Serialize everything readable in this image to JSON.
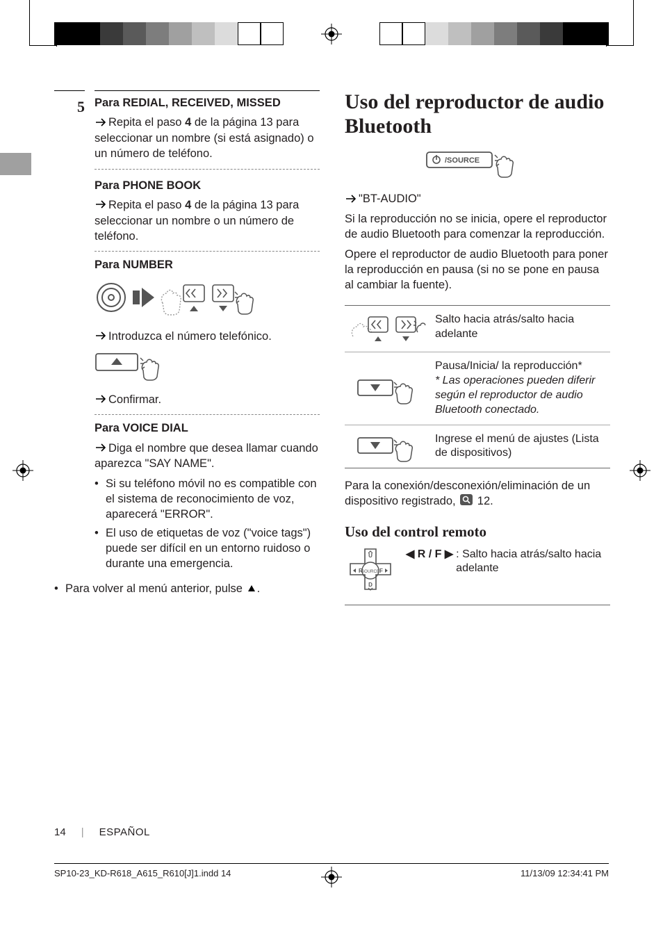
{
  "crop_swatches": [
    "#000000",
    "#000000",
    "#3a3a3a",
    "#5a5a5a",
    "#7d7d7d",
    "#a0a0a0",
    "#bfbfbf",
    "#dcdcdc",
    "#ffffff",
    "#ffffff"
  ],
  "left": {
    "step_number": "5",
    "redial": {
      "heading": "Para REDIAL, RECEIVED, MISSED",
      "body_pre": "Repita el paso ",
      "body_bold": "4",
      "body_post": " de la página 13 para seleccionar un nombre (si está asignado) o un número de teléfono."
    },
    "phonebook": {
      "heading": "Para PHONE BOOK",
      "body_pre": "Repita el paso ",
      "body_bold": "4",
      "body_post": " de la página 13 para seleccionar un nombre o un número de teléfono."
    },
    "number": {
      "heading": "Para NUMBER",
      "enter": "Introduzca el número telefónico.",
      "confirm": "Confirmar."
    },
    "voicedial": {
      "heading": "Para VOICE DIAL",
      "body": "Diga el nombre que desea llamar cuando aparezca \"SAY NAME\".",
      "bullets": [
        "Si su teléfono móvil no es compatible con el sistema de reconocimiento de voz, aparecerá \"ERROR\".",
        "El uso de etiquetas de voz (\"voice tags\") puede ser difícil en un entorno ruidoso o durante una emergencia."
      ]
    },
    "back_note_pre": "Para volver al menú anterior, pulse ",
    "back_note_post": "."
  },
  "right": {
    "title": "Uso del reproductor de audio Bluetooth",
    "source_label": "⏻/SOURCE",
    "bt_audio_quote": "\"BT-AUDIO\"",
    "para1": "Si la reproducción no se inicia, opere el reproductor de audio Bluetooth para comenzar la reproducción.",
    "para2": "Opere el reproductor de audio Bluetooth para poner la reproducción en pausa (si no se pone en pausa al cambiar la fuente).",
    "ops": [
      {
        "text": "Salto hacia atrás/salto hacia adelante",
        "icon": "skip"
      },
      {
        "text": "Pausa/Inicia/ la reproducción*",
        "note": "* Las operaciones pueden diferir según el reproductor de audio Bluetooth conectado.",
        "icon": "play"
      },
      {
        "text": "Ingrese el menú de ajustes (Lista de dispositivos)",
        "icon": "menu"
      }
    ],
    "connection_note_pre": "Para la conexión/desconexión/eliminación de un dispositivo registrado, ",
    "connection_note_ref": "12.",
    "remote_title": "Uso del control remoto",
    "remote_key": "◀ R / F ▶",
    "remote_text": ": Salto hacia atrás/salto hacia adelante"
  },
  "footer": {
    "page": "14",
    "lang": "ESPAÑOL",
    "file": "SP10-23_KD-R618_A615_R610[J]1.indd   14",
    "timestamp": "11/13/09   12:34:41 PM"
  }
}
